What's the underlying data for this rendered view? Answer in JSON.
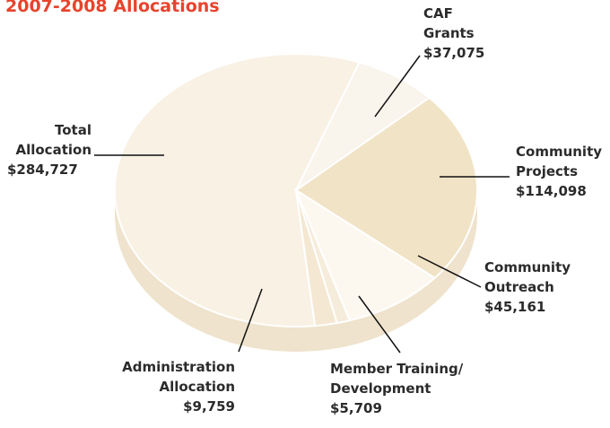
{
  "chart_data": {
    "type": "pie",
    "title": "2007-2008 Allocations",
    "categories": [
      "Total Allocation",
      "CAF Grants",
      "Community Projects",
      "Community Outreach",
      "Member Training/ Development",
      "Administration Allocation"
    ],
    "values": [
      284727,
      37075,
      114098,
      45161,
      5709,
      9759
    ],
    "value_labels": [
      "$284,727",
      "$37,075",
      "$114,098",
      "$45,161",
      "$5,709",
      "$9,759"
    ],
    "colors": [
      "#f8f1e4",
      "#f9f4ec",
      "#f1e3c6",
      "#fcf8f0",
      "#f6ecdb",
      "#f4e8d2"
    ]
  }
}
